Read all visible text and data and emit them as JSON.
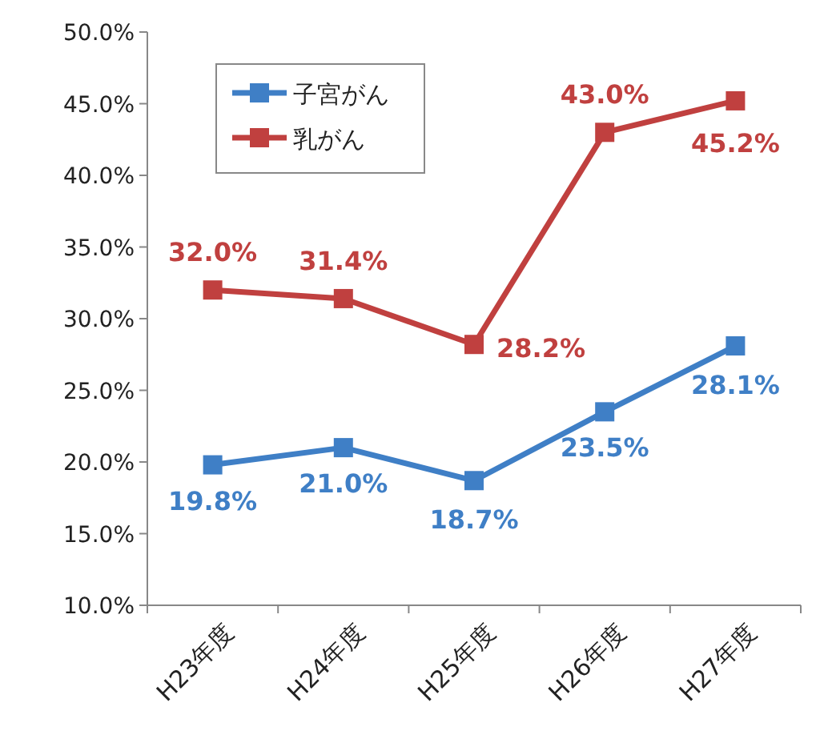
{
  "chart_data": {
    "type": "line",
    "categories": [
      "H23年度",
      "H24年度",
      "H25年度",
      "H26年度",
      "H27年度"
    ],
    "series": [
      {
        "name": "子宮がん",
        "color": "#3f7fc6",
        "values": [
          19.8,
          21.0,
          18.7,
          23.5,
          28.1
        ],
        "value_labels": [
          "19.8%",
          "21.0%",
          "18.7%",
          "23.5%",
          "28.1%"
        ]
      },
      {
        "name": "乳がん",
        "color": "#c0403f",
        "values": [
          32.0,
          31.4,
          28.2,
          43.0,
          45.2
        ],
        "value_labels": [
          "32.0%",
          "31.4%",
          "28.2%",
          "43.0%",
          "45.2%"
        ]
      }
    ],
    "ylim": [
      10,
      50
    ],
    "yticks": [
      {
        "value": 10,
        "label": "10.0%"
      },
      {
        "value": 15,
        "label": "15.0%"
      },
      {
        "value": 20,
        "label": "20.0%"
      },
      {
        "value": 25,
        "label": "25.0%"
      },
      {
        "value": 30,
        "label": "30.0%"
      },
      {
        "value": 35,
        "label": "35.0%"
      },
      {
        "value": 40,
        "label": "40.0%"
      },
      {
        "value": 45,
        "label": "45.0%"
      },
      {
        "value": 50,
        "label": "50.0%"
      }
    ],
    "grid": false,
    "legend": "top left",
    "marker": "square",
    "line_style": "solid"
  }
}
